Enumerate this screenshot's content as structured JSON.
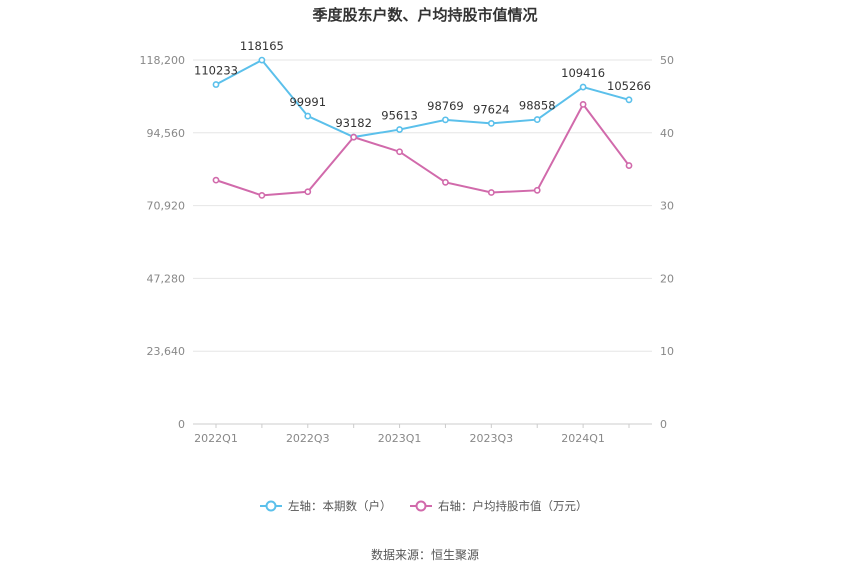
{
  "chart_data": {
    "type": "line",
    "title": "季度股东户数、户均持股市值情况",
    "source": "数据来源：恒生聚源",
    "x": [
      "2022Q1",
      "2022Q2",
      "2022Q3",
      "2022Q4",
      "2023Q1",
      "2023Q2",
      "2023Q3",
      "2023Q4",
      "2024Q1",
      "2024Q2"
    ],
    "x_tick_labels": [
      "2022Q1",
      "2022Q3",
      "2023Q1",
      "2023Q3",
      "2024Q1"
    ],
    "left_axis": {
      "min": 0,
      "max": 118200,
      "ticks": [
        "0",
        "23,640",
        "47,280",
        "70,920",
        "94,560",
        "118,200"
      ]
    },
    "right_axis": {
      "min": 0,
      "max": 50,
      "ticks": [
        "0",
        "10",
        "20",
        "30",
        "40",
        "50"
      ]
    },
    "grid": true,
    "legend_position": "bottom",
    "series": [
      {
        "name": "左轴：本期数（户）",
        "axis": "left",
        "color": "#5bc0eb",
        "values": [
          110233,
          118165,
          99991,
          93182,
          95613,
          98769,
          97624,
          98858,
          109416,
          105266
        ],
        "labels": [
          "110233",
          "118165",
          "99991",
          "93182",
          "95613",
          "98769",
          "97624",
          "98858",
          "109416",
          "105266"
        ]
      },
      {
        "name": "右轴：户均持股市值（万元）",
        "axis": "right",
        "color": "#d16aab",
        "values": [
          33.5,
          31.4,
          31.9,
          39.4,
          37.4,
          33.2,
          31.8,
          32.1,
          43.9,
          35.5
        ]
      }
    ]
  }
}
